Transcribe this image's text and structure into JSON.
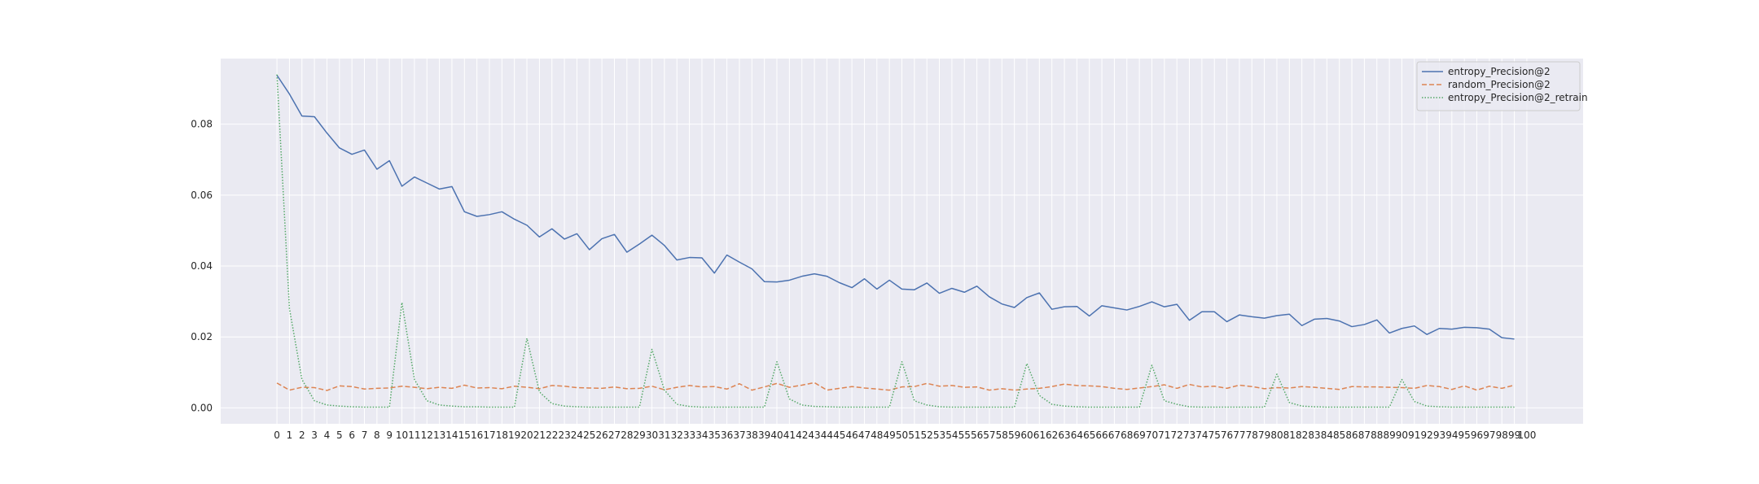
{
  "chart_data": {
    "type": "line",
    "title": "",
    "xlabel": "",
    "ylabel": "",
    "x": [
      0,
      1,
      2,
      3,
      4,
      5,
      6,
      7,
      8,
      9,
      10,
      11,
      12,
      13,
      14,
      15,
      16,
      17,
      18,
      19,
      20,
      21,
      22,
      23,
      24,
      25,
      26,
      27,
      28,
      29,
      30,
      31,
      32,
      33,
      34,
      35,
      36,
      37,
      38,
      39,
      40,
      41,
      42,
      43,
      44,
      45,
      46,
      47,
      48,
      49,
      50,
      51,
      52,
      53,
      54,
      55,
      56,
      57,
      58,
      59,
      60,
      61,
      62,
      63,
      64,
      65,
      66,
      67,
      68,
      69,
      70,
      71,
      72,
      73,
      74,
      75,
      76,
      77,
      78,
      79,
      80,
      81,
      82,
      83,
      84,
      85,
      86,
      87,
      88,
      89,
      90,
      91,
      92,
      93,
      94,
      95,
      96,
      97,
      98,
      99
    ],
    "xticks": [
      "0",
      "1",
      "2",
      "3",
      "4",
      "5",
      "6",
      "7",
      "8",
      "9",
      "10",
      "11",
      "12",
      "13",
      "14",
      "15",
      "16",
      "17",
      "18",
      "19",
      "20",
      "21",
      "22",
      "23",
      "24",
      "25",
      "26",
      "27",
      "28",
      "29",
      "30",
      "31",
      "32",
      "33",
      "34",
      "35",
      "36",
      "37",
      "38",
      "39",
      "40",
      "41",
      "42",
      "43",
      "44",
      "45",
      "46",
      "47",
      "48",
      "49",
      "50",
      "51",
      "52",
      "53",
      "54",
      "55",
      "56",
      "57",
      "58",
      "59",
      "60",
      "61",
      "62",
      "63",
      "64",
      "65",
      "66",
      "67",
      "68",
      "69",
      "70",
      "71",
      "72",
      "73",
      "74",
      "75",
      "76",
      "77",
      "78",
      "79",
      "80",
      "81",
      "82",
      "83",
      "84",
      "85",
      "86",
      "87",
      "88",
      "89",
      "90",
      "91",
      "92",
      "93",
      "94",
      "95",
      "96",
      "97",
      "98",
      "99",
      "100"
    ],
    "xlim": [
      -4.5,
      104.5
    ],
    "ylim": [
      -0.0045,
      0.0985
    ],
    "yticks": [
      0.0,
      0.02,
      0.04,
      0.06,
      0.08
    ],
    "ytick_labels": [
      "0.00",
      "0.02",
      "0.04",
      "0.06",
      "0.08"
    ],
    "grid": true,
    "legend_position": "top-right",
    "series": [
      {
        "name": "entropy_Precision@2",
        "color": "#4c72b0",
        "style": "solid",
        "values": [
          0.0938,
          0.0885,
          0.0823,
          0.0821,
          0.0775,
          0.0733,
          0.0715,
          0.0727,
          0.0673,
          0.0697,
          0.0625,
          0.0651,
          0.0634,
          0.0617,
          0.0624,
          0.0553,
          0.054,
          0.0545,
          0.0553,
          0.0532,
          0.0515,
          0.0482,
          0.0505,
          0.0476,
          0.0491,
          0.0446,
          0.0477,
          0.0489,
          0.0439,
          0.0462,
          0.0487,
          0.0458,
          0.0417,
          0.0424,
          0.0423,
          0.038,
          0.0431,
          0.0411,
          0.0392,
          0.0356,
          0.0355,
          0.036,
          0.0371,
          0.0378,
          0.0371,
          0.0353,
          0.0339,
          0.0364,
          0.0335,
          0.036,
          0.0335,
          0.0333,
          0.0352,
          0.0323,
          0.0337,
          0.0326,
          0.0343,
          0.0313,
          0.0293,
          0.0283,
          0.0311,
          0.0324,
          0.0278,
          0.0285,
          0.0286,
          0.0259,
          0.0288,
          0.0282,
          0.0276,
          0.0286,
          0.0299,
          0.0285,
          0.0292,
          0.0247,
          0.0271,
          0.0271,
          0.0243,
          0.0262,
          0.0257,
          0.0253,
          0.026,
          0.0264,
          0.0232,
          0.025,
          0.0252,
          0.0245,
          0.0229,
          0.0235,
          0.0248,
          0.0211,
          0.0224,
          0.0231,
          0.0207,
          0.0224,
          0.0222,
          0.0227,
          0.0226,
          0.0222,
          0.0198,
          0.0194
        ]
      },
      {
        "name": "random_Precision@2",
        "color": "#dd8452",
        "style": "dashed",
        "values": [
          0.007,
          0.005,
          0.0058,
          0.0057,
          0.0049,
          0.0062,
          0.006,
          0.0053,
          0.0055,
          0.0056,
          0.0061,
          0.0058,
          0.0054,
          0.0058,
          0.0055,
          0.0064,
          0.0056,
          0.0057,
          0.0054,
          0.0061,
          0.0058,
          0.0054,
          0.0063,
          0.0061,
          0.0057,
          0.0056,
          0.0055,
          0.0059,
          0.0054,
          0.0055,
          0.0061,
          0.0051,
          0.0058,
          0.0063,
          0.0059,
          0.006,
          0.0053,
          0.0068,
          0.005,
          0.0059,
          0.0069,
          0.0058,
          0.0064,
          0.0071,
          0.005,
          0.0055,
          0.006,
          0.0056,
          0.0053,
          0.005,
          0.0059,
          0.006,
          0.0069,
          0.0061,
          0.0063,
          0.0058,
          0.0059,
          0.005,
          0.0054,
          0.005,
          0.0053,
          0.0055,
          0.006,
          0.0067,
          0.0063,
          0.0062,
          0.006,
          0.0055,
          0.0052,
          0.0056,
          0.006,
          0.0065,
          0.0055,
          0.0066,
          0.0059,
          0.0061,
          0.0055,
          0.0064,
          0.006,
          0.0054,
          0.0057,
          0.0056,
          0.006,
          0.0058,
          0.0055,
          0.0052,
          0.006,
          0.0059,
          0.0059,
          0.0058,
          0.0057,
          0.0055,
          0.0063,
          0.006,
          0.0052,
          0.0062,
          0.005,
          0.0061,
          0.0055,
          0.0064
        ]
      },
      {
        "name": "entropy_Precision@2_retrain",
        "color": "#55a868",
        "style": "dotted",
        "values": [
          0.094,
          0.028,
          0.008,
          0.002,
          0.0008,
          0.0005,
          0.0003,
          0.0002,
          0.0002,
          0.0002,
          0.0297,
          0.008,
          0.002,
          0.0008,
          0.0005,
          0.0003,
          0.0003,
          0.0002,
          0.0002,
          0.0002,
          0.0196,
          0.0045,
          0.0012,
          0.0005,
          0.0003,
          0.0002,
          0.0002,
          0.0002,
          0.0002,
          0.0002,
          0.0165,
          0.005,
          0.001,
          0.0004,
          0.0002,
          0.0002,
          0.0002,
          0.0002,
          0.0002,
          0.0002,
          0.013,
          0.0025,
          0.0008,
          0.0004,
          0.0003,
          0.0002,
          0.0002,
          0.0002,
          0.0002,
          0.0002,
          0.013,
          0.002,
          0.0008,
          0.0003,
          0.0002,
          0.0002,
          0.0002,
          0.0002,
          0.0002,
          0.0002,
          0.0125,
          0.0035,
          0.001,
          0.0005,
          0.0003,
          0.0002,
          0.0002,
          0.0002,
          0.0002,
          0.0002,
          0.012,
          0.002,
          0.001,
          0.0003,
          0.0002,
          0.0002,
          0.0002,
          0.0002,
          0.0002,
          0.0002,
          0.0095,
          0.0015,
          0.0005,
          0.0003,
          0.0002,
          0.0002,
          0.0002,
          0.0002,
          0.0002,
          0.0002,
          0.008,
          0.0018,
          0.0005,
          0.0003,
          0.0002,
          0.0002,
          0.0002,
          0.0002,
          0.0002,
          0.0002
        ]
      }
    ]
  }
}
